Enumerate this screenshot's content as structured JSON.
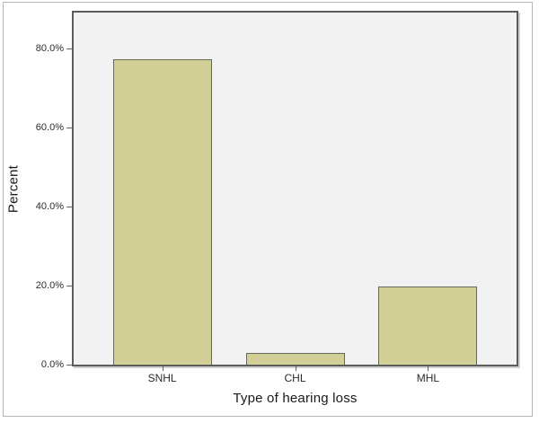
{
  "chart_data": {
    "type": "bar",
    "categories": [
      "SNHL",
      "CHL",
      "MHL"
    ],
    "values": [
      77.3,
      3.0,
      19.7
    ],
    "title": "",
    "xlabel": "Type of hearing loss",
    "ylabel": "Percent",
    "ylim": [
      0,
      89
    ],
    "yticks": [
      0,
      20,
      40,
      60,
      80
    ],
    "ytick_labels": [
      "0.0%",
      "20.0%",
      "40.0%",
      "60.0%",
      "80.0%"
    ],
    "grid": false,
    "legend": "none",
    "colors": {
      "bar_fill": "#d2cf97",
      "bar_border": "#68685a",
      "plot_background": "#f2f2f2",
      "frame": "#5c5c5c",
      "outer_border": "#b5b5b5",
      "text": "#1a1a1a"
    }
  }
}
